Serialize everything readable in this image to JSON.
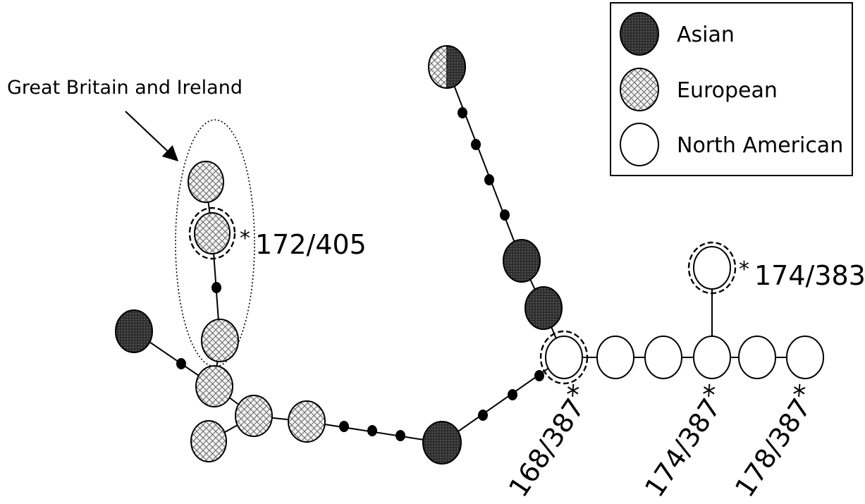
{
  "colors": {
    "asian": "#3c3c3c",
    "european": "#f2f2f2",
    "north_american": "#ffffff",
    "stroke": "#000000"
  },
  "legend": {
    "asian": "Asian",
    "european": "European",
    "north_american": "North American"
  },
  "annotation": {
    "gbi": "Great Britain and Ireland"
  },
  "labels": {
    "l172_405": "172/405",
    "l174_383": "174/383",
    "l168_387": "168/387",
    "l174_387": "174/387",
    "l178_387": "178/387",
    "star": "*"
  }
}
